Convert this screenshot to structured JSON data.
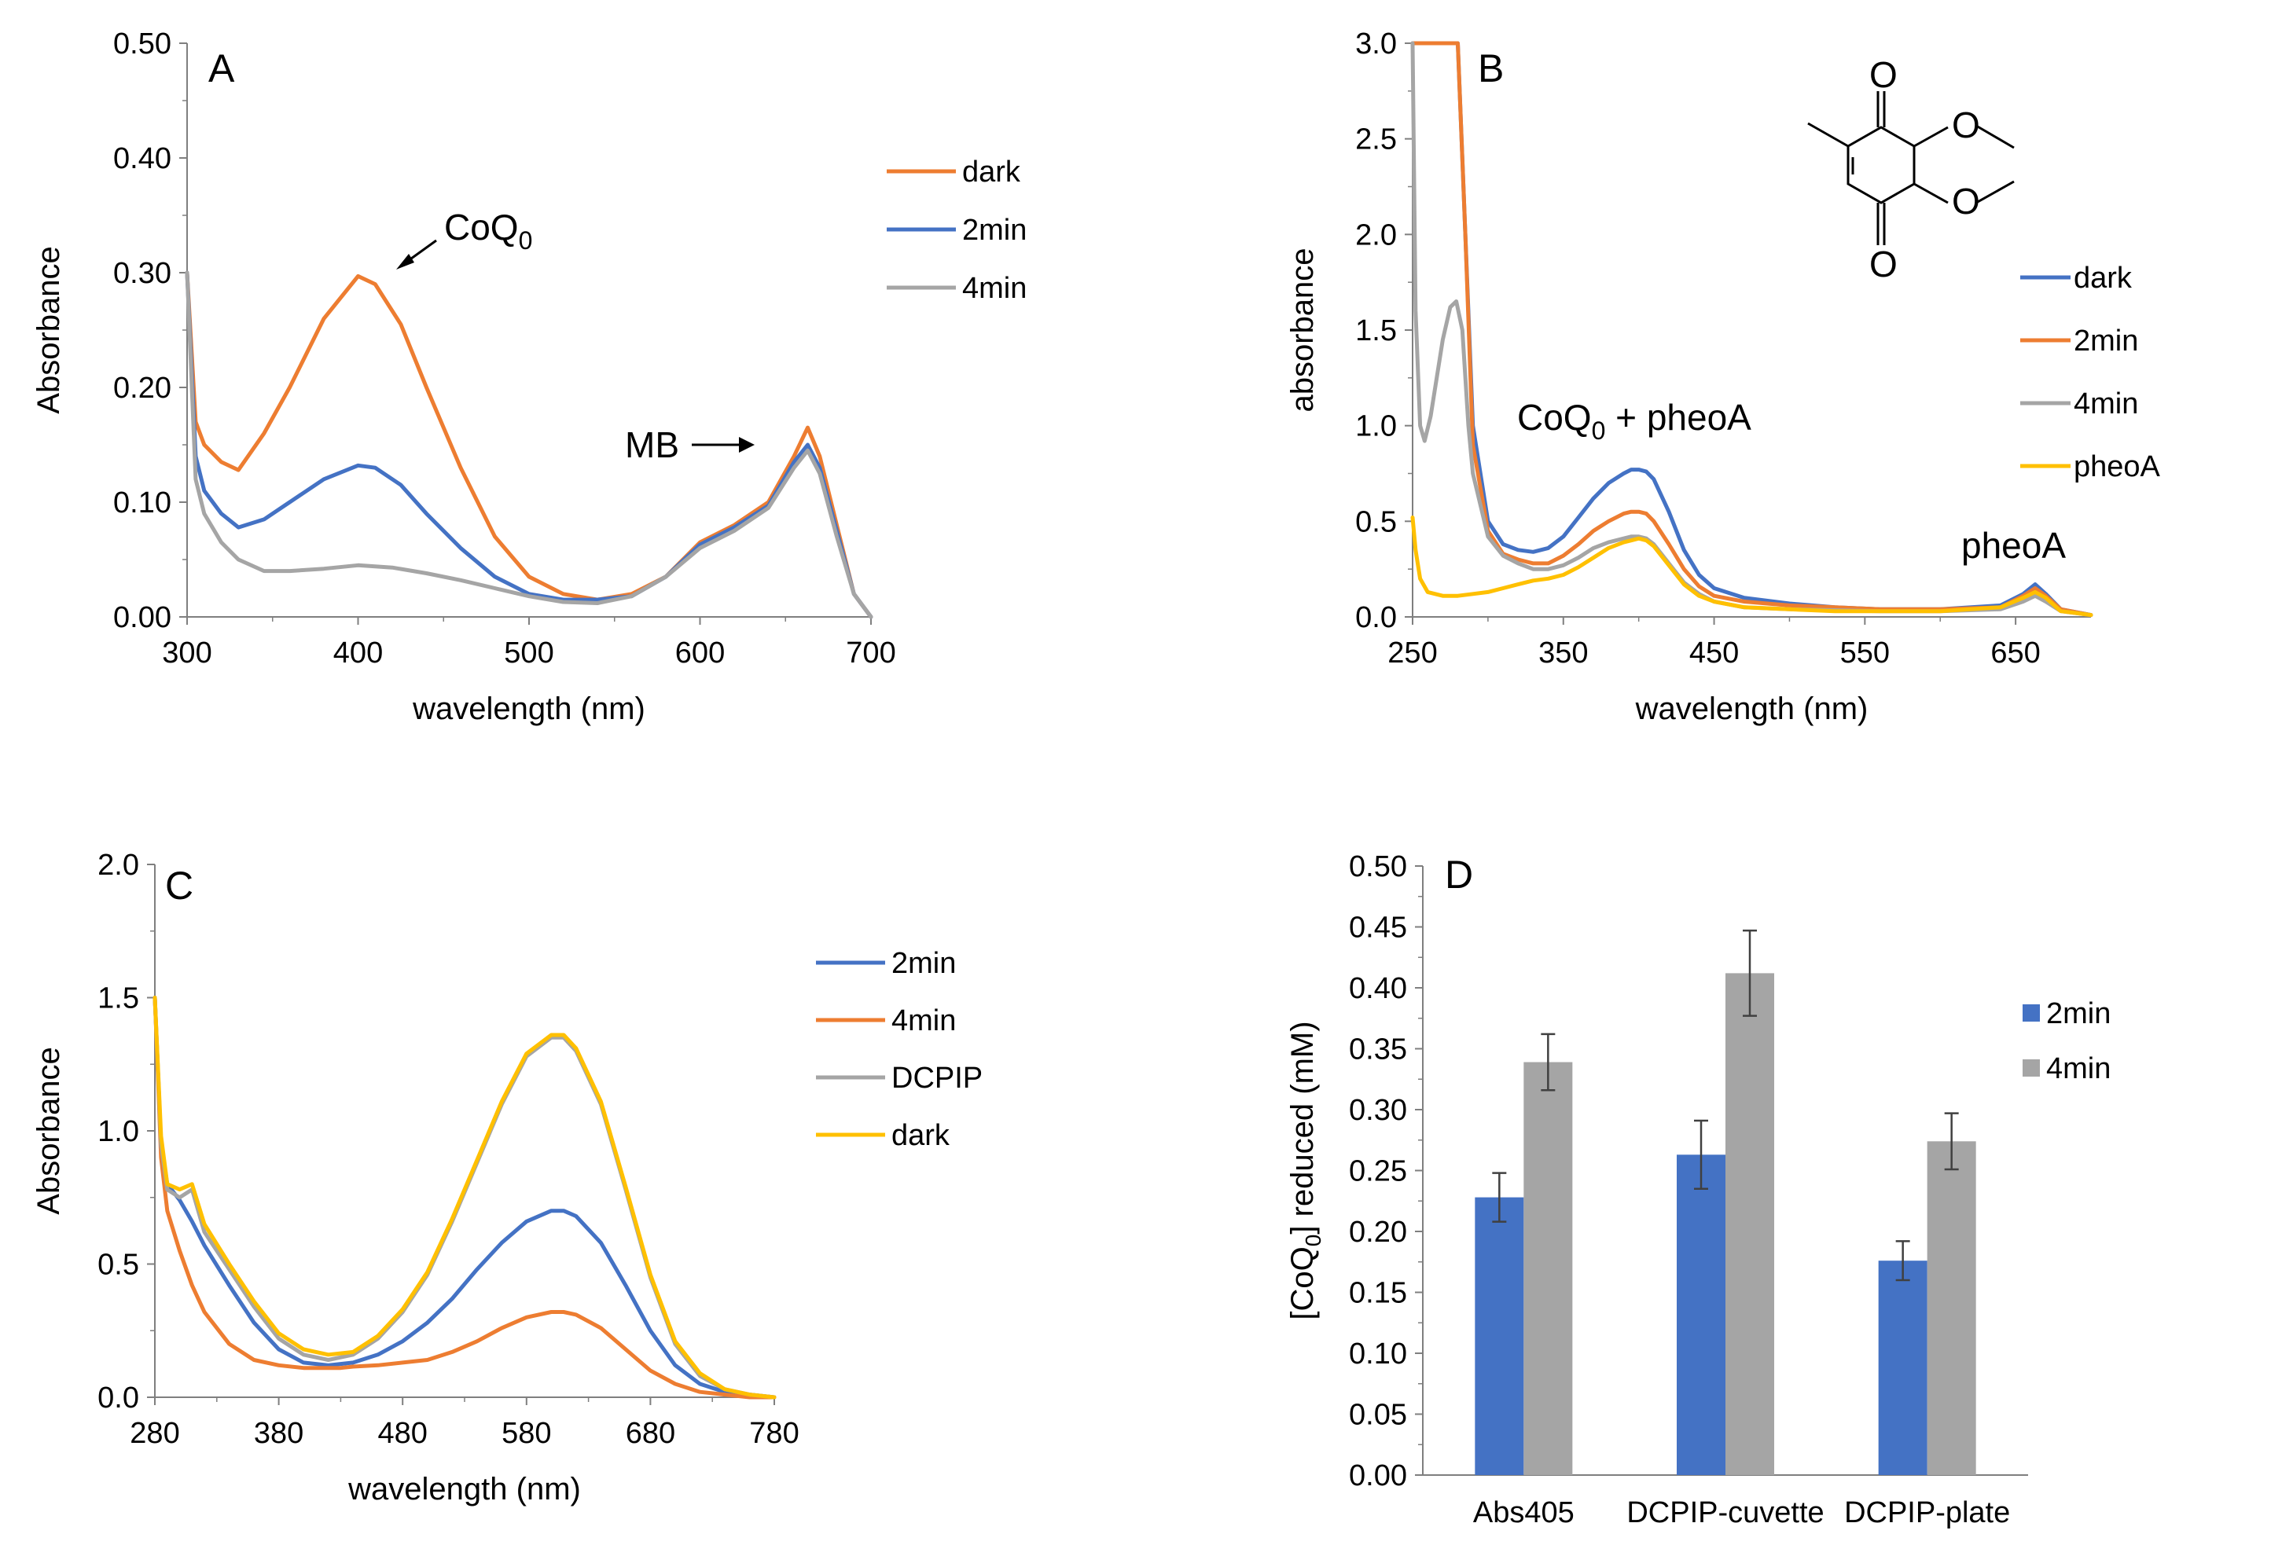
{
  "chart_data": [
    {
      "panel": "A",
      "type": "line",
      "xlabel": "wavelength  (nm)",
      "ylabel": "Absorbance",
      "xlim": [
        300,
        700
      ],
      "ylim": [
        0,
        0.5
      ],
      "xticks": [
        300,
        400,
        500,
        600,
        700
      ],
      "yticks": [
        0,
        0.1,
        0.2,
        0.3,
        0.4,
        0.5
      ],
      "ydecimals": 2,
      "legend": "right",
      "series": [
        {
          "name": "dark",
          "color": "#ED7D31",
          "x": [
            300,
            305,
            310,
            320,
            330,
            345,
            360,
            380,
            400,
            410,
            425,
            440,
            460,
            480,
            500,
            520,
            540,
            560,
            580,
            600,
            620,
            640,
            655,
            663,
            670,
            680,
            690,
            700
          ],
          "y": [
            0.3,
            0.17,
            0.15,
            0.135,
            0.128,
            0.16,
            0.2,
            0.26,
            0.297,
            0.29,
            0.255,
            0.2,
            0.13,
            0.07,
            0.035,
            0.02,
            0.015,
            0.02,
            0.035,
            0.065,
            0.08,
            0.1,
            0.14,
            0.165,
            0.14,
            0.08,
            0.02,
            0.0
          ]
        },
        {
          "name": "2min",
          "color": "#4472C4",
          "x": [
            300,
            305,
            310,
            320,
            330,
            345,
            360,
            380,
            400,
            410,
            425,
            440,
            460,
            480,
            500,
            520,
            540,
            560,
            580,
            600,
            620,
            640,
            655,
            663,
            670,
            680,
            690,
            700
          ],
          "y": [
            0.3,
            0.14,
            0.11,
            0.09,
            0.078,
            0.085,
            0.1,
            0.12,
            0.132,
            0.13,
            0.115,
            0.09,
            0.06,
            0.035,
            0.02,
            0.015,
            0.015,
            0.018,
            0.035,
            0.063,
            0.078,
            0.097,
            0.135,
            0.15,
            0.13,
            0.075,
            0.02,
            0.0
          ]
        },
        {
          "name": "4min",
          "color": "#A5A5A5",
          "x": [
            300,
            305,
            310,
            320,
            330,
            345,
            360,
            380,
            400,
            420,
            440,
            460,
            480,
            500,
            520,
            540,
            560,
            580,
            600,
            620,
            640,
            655,
            663,
            670,
            680,
            690,
            700
          ],
          "y": [
            0.3,
            0.12,
            0.09,
            0.065,
            0.05,
            0.04,
            0.04,
            0.042,
            0.045,
            0.043,
            0.038,
            0.032,
            0.025,
            0.018,
            0.013,
            0.012,
            0.018,
            0.035,
            0.06,
            0.075,
            0.095,
            0.13,
            0.145,
            0.125,
            0.07,
            0.02,
            0.0
          ]
        }
      ],
      "annotations": [
        {
          "text": "CoQ",
          "subscript": "0",
          "target": {
            "x": 405,
            "y": 0.298
          },
          "side": "upper-right"
        },
        {
          "text": "MB",
          "target": {
            "x": 653,
            "y": 0.152
          },
          "side": "left"
        }
      ]
    },
    {
      "panel": "B",
      "type": "line",
      "xlabel": "wavelength  (nm)",
      "ylabel": "absorbance",
      "xlim": [
        250,
        700
      ],
      "ylim": [
        0,
        3.0
      ],
      "xticks": [
        250,
        350,
        450,
        550,
        650
      ],
      "yticks": [
        0,
        0.5,
        1.0,
        1.5,
        2.0,
        2.5,
        3.0
      ],
      "ydecimals": 1,
      "legend": "right",
      "series": [
        {
          "name": "dark",
          "color": "#4472C4",
          "x": [
            250,
            252,
            255,
            260,
            265,
            270,
            275,
            280,
            285,
            290,
            300,
            310,
            320,
            330,
            340,
            350,
            360,
            370,
            380,
            390,
            395,
            400,
            405,
            410,
            420,
            430,
            440,
            450,
            470,
            500,
            530,
            560,
            600,
            640,
            655,
            663,
            670,
            680,
            700
          ],
          "y": [
            3.0,
            3.0,
            3.0,
            3.0,
            3.0,
            3.0,
            3.0,
            3.0,
            2.0,
            1.0,
            0.5,
            0.38,
            0.35,
            0.34,
            0.36,
            0.42,
            0.52,
            0.62,
            0.7,
            0.75,
            0.77,
            0.77,
            0.76,
            0.72,
            0.55,
            0.35,
            0.22,
            0.15,
            0.1,
            0.07,
            0.05,
            0.04,
            0.04,
            0.06,
            0.12,
            0.17,
            0.12,
            0.04,
            0.01
          ]
        },
        {
          "name": "2min",
          "color": "#ED7D31",
          "x": [
            250,
            252,
            255,
            260,
            265,
            270,
            275,
            280,
            285,
            290,
            300,
            310,
            320,
            330,
            340,
            350,
            360,
            370,
            380,
            390,
            395,
            400,
            405,
            410,
            420,
            430,
            440,
            450,
            470,
            500,
            530,
            560,
            600,
            640,
            655,
            663,
            670,
            680,
            700
          ],
          "y": [
            3.0,
            3.0,
            3.0,
            3.0,
            3.0,
            3.0,
            3.0,
            3.0,
            2.0,
            0.9,
            0.45,
            0.33,
            0.3,
            0.28,
            0.28,
            0.32,
            0.38,
            0.45,
            0.5,
            0.54,
            0.55,
            0.55,
            0.54,
            0.5,
            0.38,
            0.25,
            0.16,
            0.11,
            0.08,
            0.06,
            0.05,
            0.04,
            0.04,
            0.05,
            0.11,
            0.15,
            0.11,
            0.04,
            0.01
          ]
        },
        {
          "name": "4min",
          "color": "#A5A5A5",
          "x": [
            250,
            252,
            255,
            258,
            262,
            266,
            270,
            275,
            279,
            283,
            287,
            290,
            300,
            310,
            320,
            330,
            340,
            350,
            360,
            370,
            380,
            390,
            395,
            400,
            405,
            410,
            420,
            430,
            440,
            450,
            470,
            500,
            530,
            560,
            600,
            640,
            655,
            663,
            670,
            680,
            700
          ],
          "y": [
            3.0,
            1.6,
            1.0,
            0.92,
            1.05,
            1.25,
            1.45,
            1.62,
            1.65,
            1.5,
            1.0,
            0.75,
            0.42,
            0.32,
            0.28,
            0.25,
            0.25,
            0.27,
            0.31,
            0.36,
            0.39,
            0.41,
            0.42,
            0.42,
            0.41,
            0.38,
            0.28,
            0.18,
            0.12,
            0.08,
            0.05,
            0.04,
            0.035,
            0.03,
            0.03,
            0.04,
            0.08,
            0.11,
            0.08,
            0.03,
            0.01
          ]
        },
        {
          "name": "pheoA",
          "color": "#FFC000",
          "x": [
            250,
            252,
            255,
            260,
            265,
            270,
            280,
            290,
            300,
            310,
            320,
            330,
            340,
            350,
            360,
            370,
            380,
            390,
            395,
            400,
            405,
            410,
            420,
            430,
            440,
            450,
            470,
            500,
            530,
            560,
            600,
            640,
            655,
            663,
            670,
            680,
            700
          ],
          "y": [
            0.52,
            0.35,
            0.2,
            0.13,
            0.12,
            0.11,
            0.11,
            0.12,
            0.13,
            0.15,
            0.17,
            0.19,
            0.2,
            0.22,
            0.26,
            0.31,
            0.36,
            0.39,
            0.4,
            0.41,
            0.4,
            0.37,
            0.27,
            0.17,
            0.11,
            0.08,
            0.05,
            0.04,
            0.03,
            0.03,
            0.03,
            0.05,
            0.1,
            0.13,
            0.1,
            0.03,
            0.01
          ]
        }
      ],
      "annotations": [
        {
          "text": "CoQ",
          "subscript": "0",
          "suffix": " + pheoA"
        },
        {
          "text": "pheoA"
        }
      ],
      "structure_labels": [
        "O",
        "O",
        "O",
        "O"
      ]
    },
    {
      "panel": "C",
      "type": "line",
      "xlabel": "wavelength  (nm)",
      "ylabel": "Absorbance",
      "xlim": [
        280,
        780
      ],
      "ylim": [
        0,
        2.0
      ],
      "xticks": [
        280,
        380,
        480,
        580,
        680,
        780
      ],
      "yticks": [
        0,
        0.5,
        1.0,
        1.5,
        2.0
      ],
      "ydecimals": 1,
      "legend": "right",
      "series": [
        {
          "name": "2min",
          "color": "#4472C4",
          "x": [
            280,
            285,
            290,
            300,
            310,
            320,
            340,
            360,
            380,
            400,
            420,
            430,
            440,
            460,
            480,
            500,
            520,
            540,
            560,
            580,
            600,
            610,
            620,
            640,
            660,
            680,
            700,
            720,
            740,
            760,
            780
          ],
          "y": [
            1.5,
            0.95,
            0.8,
            0.74,
            0.66,
            0.57,
            0.42,
            0.28,
            0.18,
            0.13,
            0.12,
            0.125,
            0.13,
            0.16,
            0.21,
            0.28,
            0.37,
            0.48,
            0.58,
            0.66,
            0.7,
            0.7,
            0.68,
            0.58,
            0.42,
            0.25,
            0.12,
            0.05,
            0.02,
            0.01,
            0.0
          ]
        },
        {
          "name": "4min",
          "color": "#ED7D31",
          "x": [
            280,
            285,
            290,
            300,
            310,
            320,
            340,
            360,
            380,
            400,
            420,
            430,
            440,
            460,
            480,
            500,
            520,
            540,
            560,
            580,
            600,
            610,
            620,
            640,
            660,
            680,
            700,
            720,
            740,
            760,
            780
          ],
          "y": [
            1.5,
            0.9,
            0.7,
            0.55,
            0.42,
            0.32,
            0.2,
            0.14,
            0.12,
            0.11,
            0.11,
            0.11,
            0.115,
            0.12,
            0.13,
            0.14,
            0.17,
            0.21,
            0.26,
            0.3,
            0.32,
            0.32,
            0.31,
            0.26,
            0.18,
            0.1,
            0.05,
            0.02,
            0.01,
            0.0,
            0.0
          ]
        },
        {
          "name": "DCPIP",
          "color": "#A5A5A5",
          "x": [
            280,
            285,
            290,
            300,
            310,
            320,
            340,
            360,
            380,
            400,
            420,
            430,
            440,
            460,
            480,
            500,
            520,
            540,
            560,
            580,
            600,
            610,
            620,
            640,
            660,
            680,
            700,
            720,
            740,
            760,
            780
          ],
          "y": [
            1.5,
            0.95,
            0.78,
            0.75,
            0.78,
            0.62,
            0.48,
            0.34,
            0.22,
            0.16,
            0.14,
            0.15,
            0.16,
            0.22,
            0.32,
            0.46,
            0.66,
            0.88,
            1.1,
            1.28,
            1.35,
            1.35,
            1.3,
            1.1,
            0.78,
            0.45,
            0.2,
            0.08,
            0.03,
            0.01,
            0.0
          ]
        },
        {
          "name": "dark",
          "color": "#FFC000",
          "x": [
            280,
            285,
            290,
            300,
            310,
            320,
            340,
            360,
            380,
            400,
            420,
            430,
            440,
            460,
            480,
            500,
            520,
            540,
            560,
            580,
            600,
            610,
            620,
            640,
            660,
            680,
            700,
            720,
            740,
            760,
            780
          ],
          "y": [
            1.5,
            0.98,
            0.8,
            0.78,
            0.8,
            0.65,
            0.5,
            0.36,
            0.24,
            0.18,
            0.16,
            0.165,
            0.17,
            0.23,
            0.33,
            0.47,
            0.67,
            0.89,
            1.11,
            1.29,
            1.36,
            1.36,
            1.31,
            1.11,
            0.79,
            0.46,
            0.21,
            0.09,
            0.03,
            0.01,
            0.0
          ]
        }
      ]
    },
    {
      "panel": "D",
      "type": "bar",
      "ylabel": "[CoQ",
      "ylabel_subscript": "0",
      "ylabel_suffix": "] reduced (mM)",
      "ylim": [
        0,
        0.5
      ],
      "yticks": [
        0,
        0.05,
        0.1,
        0.15,
        0.2,
        0.25,
        0.3,
        0.35,
        0.4,
        0.45,
        0.5
      ],
      "ydecimals": 2,
      "categories": [
        "Abs405",
        "DCPIP-cuvette",
        "DCPIP-plate"
      ],
      "legend": "right",
      "series": [
        {
          "name": "2min",
          "color": "#4472C4",
          "values": [
            0.228,
            0.263,
            0.176
          ],
          "errors": [
            0.02,
            0.028,
            0.016
          ]
        },
        {
          "name": "4min",
          "color": "#A5A5A5",
          "values": [
            0.339,
            0.412,
            0.274
          ],
          "errors": [
            0.023,
            0.035,
            0.023
          ]
        }
      ]
    }
  ]
}
